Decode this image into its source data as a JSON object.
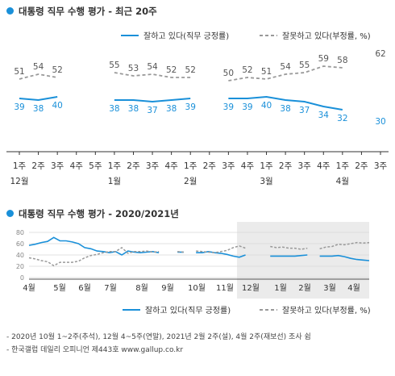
{
  "chart_data": [
    {
      "type": "line",
      "title": "대통령 직무 수행 평가 - 최근 20주",
      "categories": [
        "1주",
        "2주",
        "3주",
        "4주",
        "5주",
        "1주",
        "2주",
        "3주",
        "4주",
        "1주",
        "2주",
        "3주",
        "4주",
        "1주",
        "2주",
        "3주",
        "4주",
        "1주",
        "2주",
        "3주"
      ],
      "month_labels": [
        {
          "label": "12월",
          "index": 0
        },
        {
          "label": "1월",
          "index": 5
        },
        {
          "label": "2월",
          "index": 9
        },
        {
          "label": "3월",
          "index": 13
        },
        {
          "label": "4월",
          "index": 17
        }
      ],
      "series": [
        {
          "name": "잘하고 있다(직무 긍정률)",
          "color": "#1a90d9",
          "dash": false,
          "values": [
            39,
            38,
            40,
            null,
            null,
            38,
            38,
            37,
            38,
            39,
            null,
            39,
            39,
            40,
            38,
            37,
            34,
            32,
            null,
            30
          ]
        },
        {
          "name": "잘못하고 있다(부정률, %)",
          "color": "#999999",
          "dash": true,
          "values": [
            51,
            54,
            52,
            null,
            null,
            55,
            53,
            54,
            52,
            52,
            null,
            50,
            52,
            51,
            54,
            55,
            59,
            58,
            null,
            62
          ]
        }
      ],
      "ylim": [
        20,
        70
      ],
      "legend": "top-right"
    },
    {
      "type": "line",
      "title": "대통령 직무 수행 평가 - 2020/2021년",
      "yticks": [
        0,
        20,
        40,
        60,
        80
      ],
      "ylim": [
        0,
        80
      ],
      "month_labels": [
        "4월",
        "5월",
        "6월",
        "7월",
        "8월",
        "9월",
        "10월",
        "11월",
        "12월",
        "1월",
        "2월",
        "3월",
        "4월"
      ],
      "shaded_from_month": "12월",
      "series": [
        {
          "name": "잘하고 있다(직무 긍정률)",
          "color": "#1a90d9",
          "dash": false,
          "values": [
            57,
            59,
            62,
            64,
            71,
            65,
            65,
            63,
            60,
            53,
            51,
            47,
            46,
            44,
            46,
            40,
            47,
            45,
            44,
            45,
            46,
            44,
            null,
            null,
            45,
            45,
            null,
            44,
            44,
            46,
            44,
            43,
            41,
            38,
            36,
            40,
            null,
            null,
            null,
            38,
            38,
            38,
            38,
            38,
            39,
            40,
            null,
            38,
            38,
            38,
            39,
            37,
            34,
            32,
            31,
            30
          ]
        },
        {
          "name": "잘못하고 있다(부정률, %)",
          "color": "#999999",
          "dash": true,
          "values": [
            35,
            33,
            30,
            28,
            21,
            27,
            27,
            27,
            29,
            35,
            39,
            41,
            44,
            46,
            46,
            53,
            43,
            46,
            46,
            47,
            45,
            46,
            null,
            null,
            46,
            45,
            null,
            47,
            46,
            45,
            44,
            46,
            48,
            53,
            56,
            52,
            null,
            null,
            null,
            55,
            53,
            54,
            52,
            52,
            50,
            52,
            null,
            51,
            54,
            55,
            59,
            58,
            60,
            62,
            61,
            62
          ]
        }
      ],
      "legend": "bottom-right"
    }
  ],
  "notes": [
    "- 2020년 10월 1~2주(추석), 12월 4~5주(연말), 2021년 2월 2주(설), 4월 2주(재보선) 조사 쉼",
    "- 한국갤럽 데일리 오피니언 제443호 www.gallup.co.kr"
  ]
}
